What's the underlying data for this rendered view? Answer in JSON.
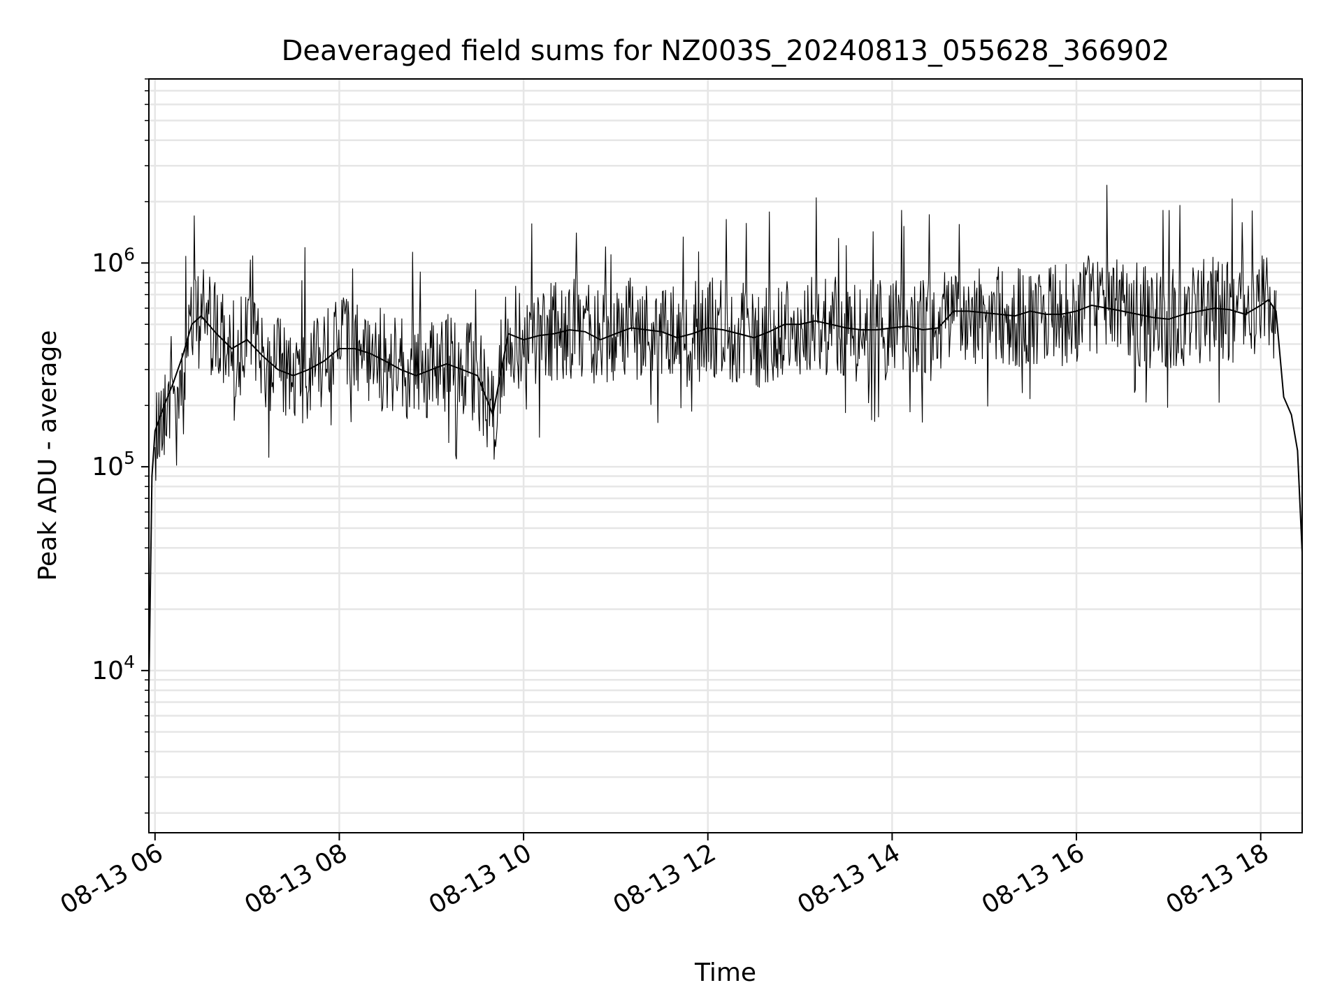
{
  "chart_data": {
    "type": "line",
    "title": "Deaveraged field sums for NZ003S_20240813_055628_366902",
    "xlabel": "Time",
    "ylabel": "Peak ADU - average",
    "x_ticks": [
      "08-13 06",
      "08-13 08",
      "08-13 10",
      "08-13 12",
      "08-13 14",
      "08-13 16",
      "08-13 18"
    ],
    "y_ticks": [
      {
        "value": 10000,
        "base": "10",
        "exp": "4"
      },
      {
        "value": 100000,
        "base": "10",
        "exp": "5"
      },
      {
        "value": 1000000,
        "base": "10",
        "exp": "6"
      }
    ],
    "yscale": "log",
    "xlim": [
      "2024-08-13 05:56",
      "2024-08-13 18:27"
    ],
    "ylim": [
      1600,
      8000000
    ],
    "grid": true,
    "line_color": "#000000",
    "grid_color": "#e6e6e6",
    "series": [
      {
        "x": [
          "2024-08-13 05:56",
          "2024-08-13 05:58",
          "2024-08-13 06:00",
          "2024-08-13 06:06",
          "2024-08-13 06:12",
          "2024-08-13 06:18",
          "2024-08-13 06:24",
          "2024-08-13 06:30",
          "2024-08-13 06:40",
          "2024-08-13 06:50",
          "2024-08-13 07:00",
          "2024-08-13 07:10",
          "2024-08-13 07:20",
          "2024-08-13 07:30",
          "2024-08-13 07:40",
          "2024-08-13 07:50",
          "2024-08-13 08:00",
          "2024-08-13 08:10",
          "2024-08-13 08:20",
          "2024-08-13 08:30",
          "2024-08-13 08:40",
          "2024-08-13 08:50",
          "2024-08-13 09:00",
          "2024-08-13 09:10",
          "2024-08-13 09:20",
          "2024-08-13 09:30",
          "2024-08-13 09:40",
          "2024-08-13 09:50",
          "2024-08-13 10:00",
          "2024-08-13 10:10",
          "2024-08-13 10:20",
          "2024-08-13 10:30",
          "2024-08-13 10:40",
          "2024-08-13 10:50",
          "2024-08-13 11:00",
          "2024-08-13 11:10",
          "2024-08-13 11:20",
          "2024-08-13 11:30",
          "2024-08-13 11:40",
          "2024-08-13 11:50",
          "2024-08-13 12:00",
          "2024-08-13 12:10",
          "2024-08-13 12:20",
          "2024-08-13 12:30",
          "2024-08-13 12:40",
          "2024-08-13 12:50",
          "2024-08-13 13:00",
          "2024-08-13 13:10",
          "2024-08-13 13:20",
          "2024-08-13 13:30",
          "2024-08-13 13:40",
          "2024-08-13 13:50",
          "2024-08-13 14:00",
          "2024-08-13 14:10",
          "2024-08-13 14:20",
          "2024-08-13 14:30",
          "2024-08-13 14:40",
          "2024-08-13 14:50",
          "2024-08-13 15:00",
          "2024-08-13 15:10",
          "2024-08-13 15:20",
          "2024-08-13 15:30",
          "2024-08-13 15:40",
          "2024-08-13 15:50",
          "2024-08-13 16:00",
          "2024-08-13 16:10",
          "2024-08-13 16:20",
          "2024-08-13 16:30",
          "2024-08-13 16:40",
          "2024-08-13 16:50",
          "2024-08-13 17:00",
          "2024-08-13 17:10",
          "2024-08-13 17:20",
          "2024-08-13 17:30",
          "2024-08-13 17:40",
          "2024-08-13 17:50",
          "2024-08-13 18:00",
          "2024-08-13 18:05",
          "2024-08-13 18:10",
          "2024-08-13 18:15",
          "2024-08-13 18:20",
          "2024-08-13 18:24",
          "2024-08-13 18:27"
        ],
        "y": [
          8000,
          90000,
          150000,
          200000,
          260000,
          350000,
          500000,
          550000,
          450000,
          380000,
          420000,
          350000,
          300000,
          280000,
          300000,
          330000,
          380000,
          380000,
          360000,
          330000,
          300000,
          280000,
          300000,
          320000,
          300000,
          280000,
          180000,
          450000,
          420000,
          440000,
          450000,
          470000,
          460000,
          420000,
          450000,
          480000,
          470000,
          460000,
          430000,
          450000,
          480000,
          470000,
          450000,
          430000,
          460000,
          500000,
          500000,
          520000,
          500000,
          480000,
          470000,
          470000,
          480000,
          490000,
          470000,
          480000,
          580000,
          580000,
          570000,
          560000,
          550000,
          580000,
          560000,
          560000,
          580000,
          620000,
          600000,
          580000,
          560000,
          540000,
          530000,
          560000,
          580000,
          600000,
          590000,
          560000,
          620000,
          660000,
          580000,
          220000,
          180000,
          120000,
          38000
        ]
      }
    ]
  }
}
